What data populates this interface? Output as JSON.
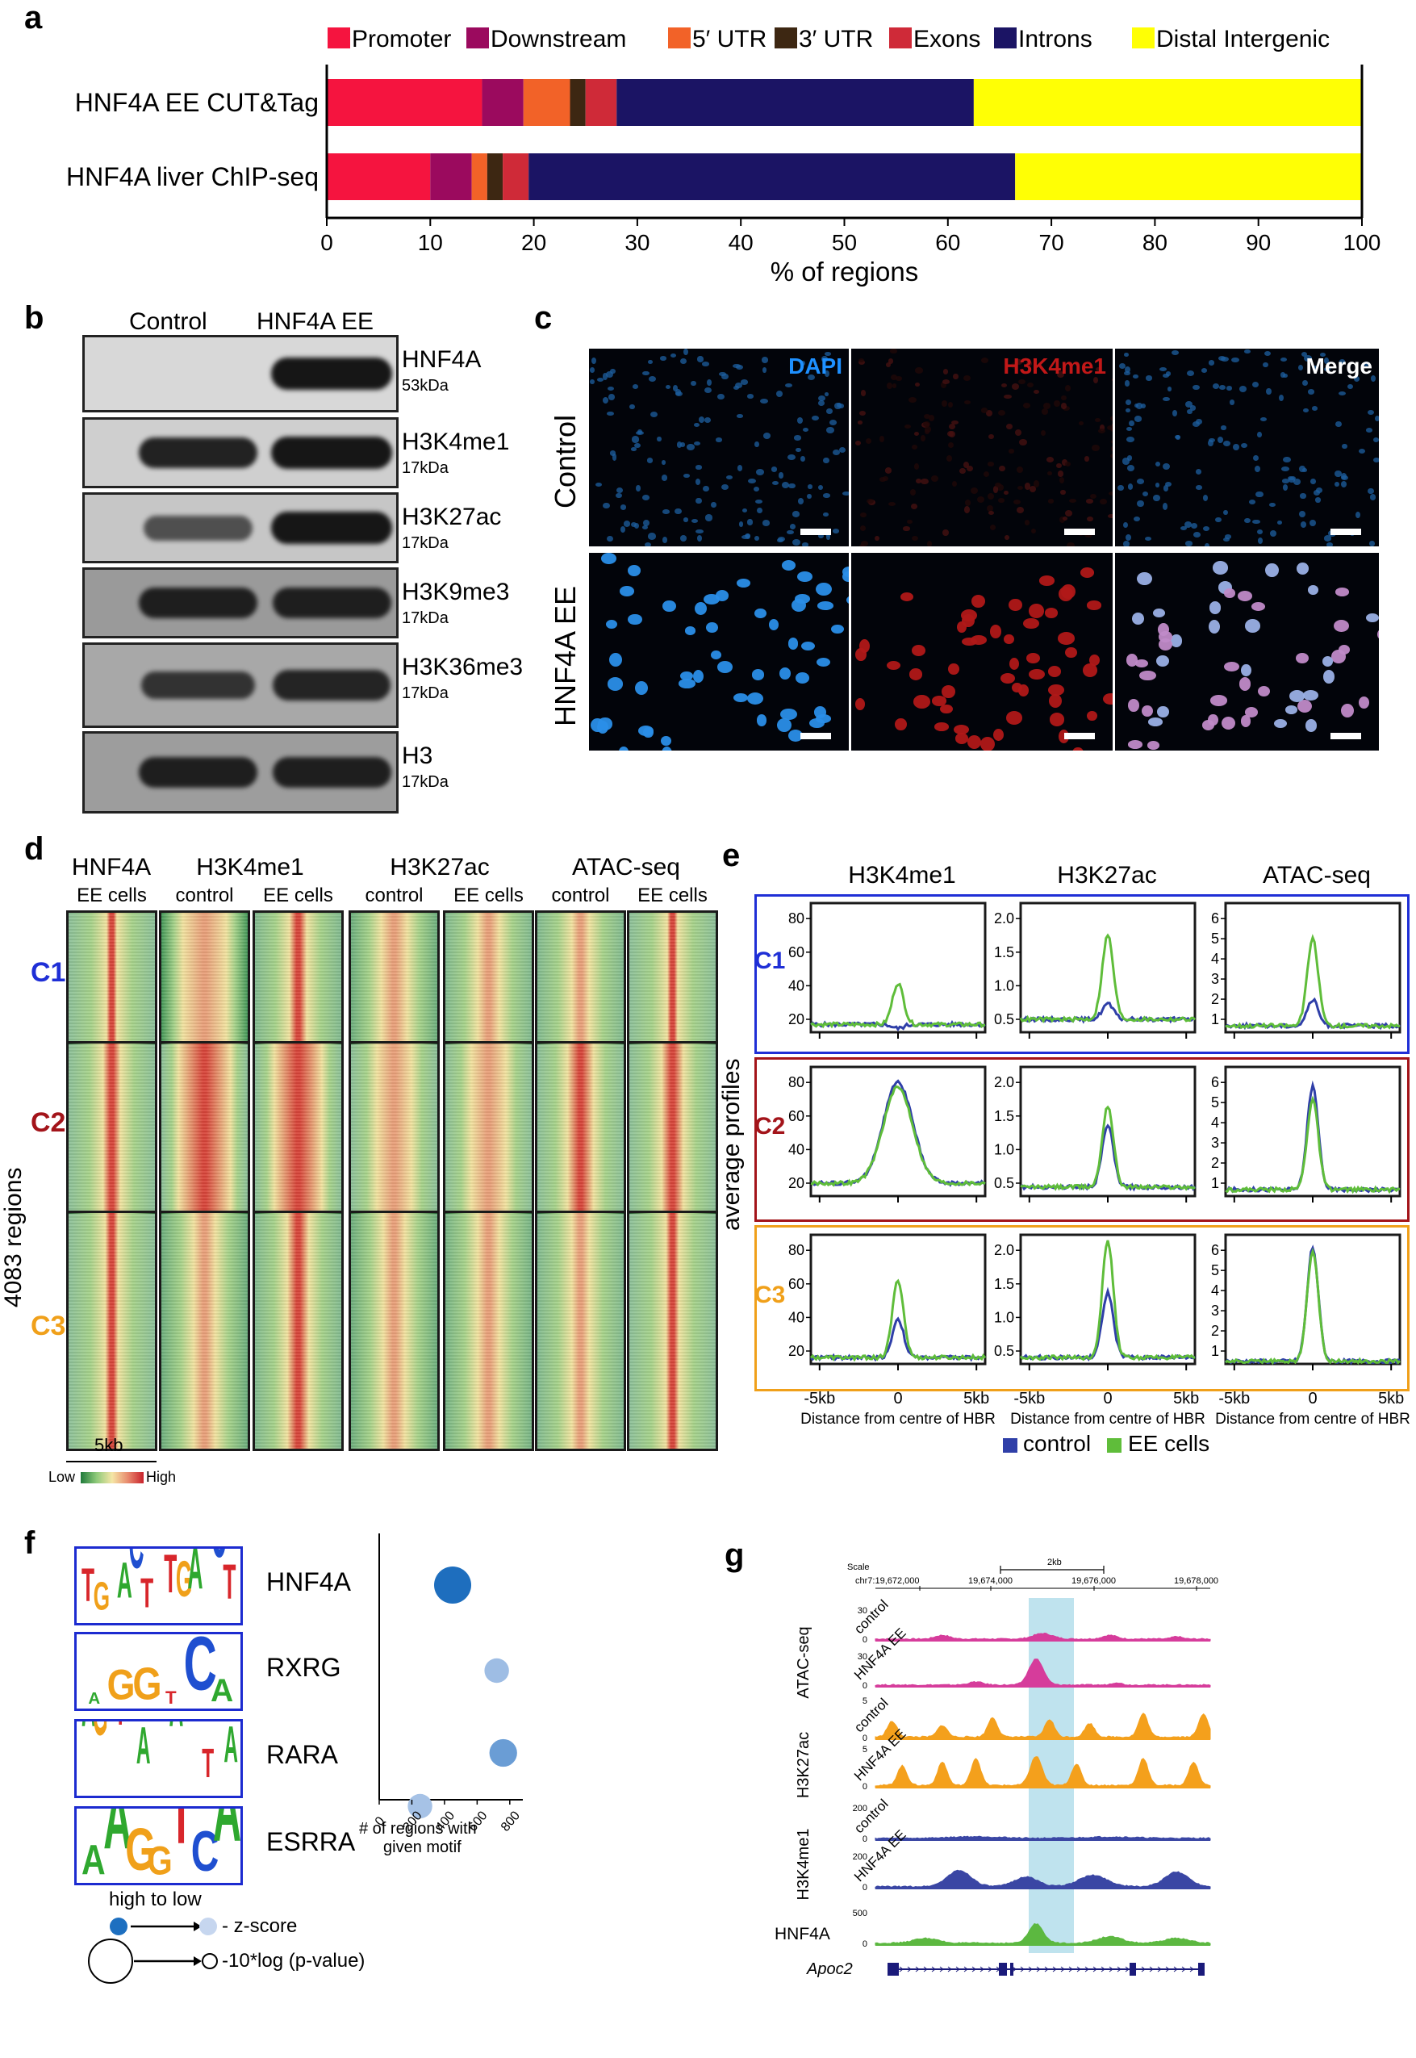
{
  "panels": {
    "a": "a",
    "b": "b",
    "c": "c",
    "d": "d",
    "e": "e",
    "f": "f",
    "g": "g"
  },
  "chart_data": {
    "type": "bar",
    "orientation": "horizontal-stacked",
    "categories": [
      "HNF4A EE CUT&Tag",
      "HNF4A liver ChIP-seq"
    ],
    "series": [
      {
        "name": "Promoter",
        "color": "#f5143f",
        "values": [
          15,
          10
        ]
      },
      {
        "name": "Downstream",
        "color": "#9b0a5e",
        "values": [
          4,
          4
        ]
      },
      {
        "name": "5′ UTR",
        "color": "#f26228",
        "values": [
          4.5,
          1.5
        ]
      },
      {
        "name": "3′ UTR",
        "color": "#3d2712",
        "values": [
          1.5,
          1.5
        ]
      },
      {
        "name": "Exons",
        "color": "#cf2a38",
        "values": [
          3,
          2.5
        ]
      },
      {
        "name": "Introns",
        "color": "#1b1464",
        "values": [
          34.5,
          47
        ]
      },
      {
        "name": "Distal Intergenic",
        "color": "#ffff05",
        "values": [
          37.5,
          33.5
        ]
      }
    ],
    "xlabel": "% of regions",
    "xticks": [
      "0",
      "10",
      "20",
      "30",
      "40",
      "50",
      "60",
      "70",
      "80",
      "90",
      "100"
    ],
    "xlim": [
      0,
      100
    ],
    "legend": "top"
  },
  "panel_b": {
    "col_labels": [
      "Control",
      "HNF4A EE"
    ],
    "blots": [
      {
        "name": "HNF4A",
        "kda": "53kDa",
        "bands": [
          0.0,
          1.0
        ],
        "bg": "#d8d8d8"
      },
      {
        "name": "H3K4me1",
        "kda": "17kDa",
        "bands": [
          0.9,
          1.0
        ],
        "bg": "#cfcfcf"
      },
      {
        "name": "H3K27ac",
        "kda": "17kDa",
        "bands": [
          0.5,
          1.0
        ],
        "bg": "#c6c6c6"
      },
      {
        "name": "H3K9me3",
        "kda": "17kDa",
        "bands": [
          0.9,
          0.9
        ],
        "bg": "#9a9a9a"
      },
      {
        "name": "H3K36me3",
        "kda": "17kDa",
        "bands": [
          0.7,
          0.85
        ],
        "bg": "#a8a8a8"
      },
      {
        "name": "H3",
        "kda": "17kDa",
        "bands": [
          0.9,
          0.9
        ],
        "bg": "#9d9d9d"
      }
    ]
  },
  "panel_c": {
    "channels": [
      "DAPI",
      "H3K4me1",
      "Merge"
    ],
    "channel_colors": [
      "#1e90ff",
      "#c11818",
      "#ffffff"
    ],
    "rows": [
      "Control",
      "HNF4A EE"
    ]
  },
  "panel_d": {
    "groups": [
      {
        "name": "HNF4A",
        "cols": [
          "EE cells"
        ]
      },
      {
        "name": "H3K4me1",
        "cols": [
          "control",
          "EE cells"
        ]
      },
      {
        "name": "H3K27ac",
        "cols": [
          "control",
          "EE cells"
        ]
      },
      {
        "name": "ATAC-seq",
        "cols": [
          "control",
          "EE cells"
        ]
      }
    ],
    "clusters": [
      {
        "name": "C1",
        "color": "#1f2fd6"
      },
      {
        "name": "C2",
        "color": "#a3141a"
      },
      {
        "name": "C3",
        "color": "#f0a01a"
      }
    ],
    "ylabel": "4083 regions",
    "scale_label": "5kb",
    "colorbar": {
      "low": "Low",
      "high": "High"
    }
  },
  "panel_e": {
    "columns": [
      "H3K4me1",
      "H3K27ac",
      "ATAC-seq"
    ],
    "ylabel": "average profiles",
    "xticks": [
      "-5kb",
      "0",
      "5kb"
    ],
    "xlabel": "Distance from centre of HBR",
    "legend": [
      "control",
      "EE cells"
    ],
    "legend_colors": [
      "#2f3fa8",
      "#5fbd3a"
    ],
    "yticks": [
      [
        "80",
        "60",
        "40",
        "20"
      ],
      [
        "2.0",
        "1.5",
        "1.0",
        "0.5"
      ],
      [
        "6",
        "5",
        "4",
        "3",
        "2",
        "1"
      ]
    ]
  },
  "panel_f": {
    "motifs": [
      {
        "name": "HNF4A",
        "logo": "TGAACTTTGACCT",
        "regions": 450,
        "zscore_level": 1.0,
        "size_level": 1.0
      },
      {
        "name": "RXRG",
        "logo": "AGGTCA",
        "regions": 720,
        "zscore_level": 0.25,
        "size_level": 0.4
      },
      {
        "name": "RARA",
        "logo": "AGGTCAAAAGGTCA",
        "regions": 760,
        "zscore_level": 0.55,
        "size_level": 0.55
      },
      {
        "name": "ESRRA",
        "logo": "AAGGTCA",
        "regions": 250,
        "zscore_level": 0.2,
        "size_level": 0.4
      }
    ],
    "xticks": [
      "0",
      "200",
      "400",
      "600",
      "800"
    ],
    "xlim": [
      0,
      880
    ],
    "xlabel_line1": "# of regions with",
    "xlabel_line2": "given motif",
    "legend_title": "high to low",
    "legend_z": "- z-score",
    "legend_p": "-10*log (p-value)"
  },
  "panel_g": {
    "scale": "Scale",
    "scale_bar": "2kb",
    "coords": [
      "chr7:19,672,000",
      "19,674,000",
      "19,676,000",
      "19,678,000"
    ],
    "tracks": [
      {
        "assay": "ATAC-seq",
        "sample": "control",
        "max": "30",
        "color": "#d63c9b"
      },
      {
        "assay": "ATAC-seq",
        "sample": "HNF4A EE",
        "max": "30",
        "color": "#d63c9b"
      },
      {
        "assay": "H3K27ac",
        "sample": "control",
        "max": "5",
        "color": "#f4a01c"
      },
      {
        "assay": "H3K27ac",
        "sample": "HNF4A EE",
        "max": "5",
        "color": "#f4a01c"
      },
      {
        "assay": "H3K4me1",
        "sample": "control",
        "max": "200",
        "color": "#3a46a4"
      },
      {
        "assay": "H3K4me1",
        "sample": "HNF4A EE",
        "max": "200",
        "color": "#3a46a4"
      },
      {
        "assay": "HNF4A",
        "sample": "",
        "max": "500",
        "color": "#5cb840"
      }
    ],
    "gene": "Apoc2",
    "zero": "0"
  }
}
